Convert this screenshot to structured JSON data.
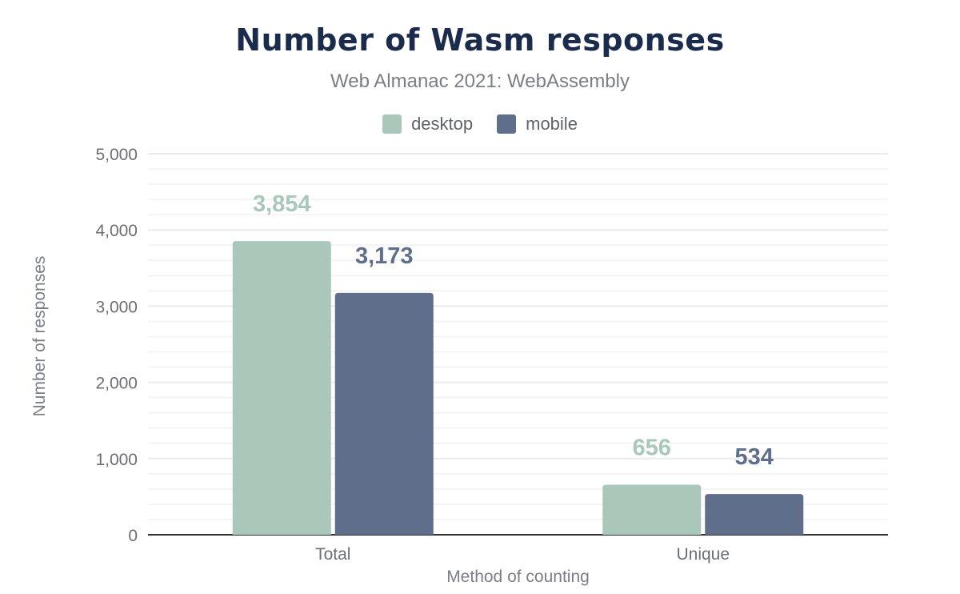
{
  "chart_data": {
    "type": "bar",
    "title": "Number of Wasm responses",
    "subtitle": "Web Almanac 2021: WebAssembly",
    "xlabel": "Method of counting",
    "ylabel": "Number of responses",
    "categories": [
      "Total",
      "Unique"
    ],
    "series": [
      {
        "name": "desktop",
        "values": [
          3854,
          656
        ],
        "labels": [
          "3,854",
          "656"
        ],
        "color": "#a9c8b9"
      },
      {
        "name": "mobile",
        "values": [
          3173,
          534
        ],
        "labels": [
          "3,173",
          "534"
        ],
        "color": "#5f6f8b"
      }
    ],
    "ylim": [
      0,
      5000
    ],
    "yticks": [
      0,
      1000,
      2000,
      3000,
      4000,
      5000
    ],
    "ytick_labels": [
      "0",
      "1,000",
      "2,000",
      "3,000",
      "4,000",
      "5,000"
    ],
    "grid": true,
    "legend_position": "top"
  }
}
